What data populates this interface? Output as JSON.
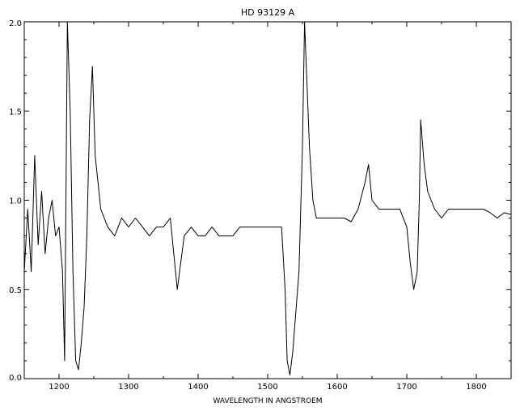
{
  "chart_data": {
    "type": "line",
    "title": "HD 93129 A",
    "xlabel": "WAVELENGTH IN ANGSTROEM",
    "ylabel": "",
    "xlim": [
      1150,
      1850
    ],
    "ylim": [
      0.0,
      2.0
    ],
    "x_ticks": [
      1200,
      1300,
      1400,
      1500,
      1600,
      1700,
      1800
    ],
    "x_tick_labels": [
      "1200",
      "1300",
      "1400",
      "1500",
      "1600",
      "1700",
      "1800"
    ],
    "y_ticks": [
      0.0,
      0.5,
      1.0,
      1.5,
      2.0
    ],
    "y_tick_labels": [
      "0.0",
      "0.5",
      "1.0",
      "1.5",
      "2.0"
    ],
    "grid": false,
    "line_color": "#000000",
    "series": [
      {
        "x": [
          1150,
          1155,
          1160,
          1165,
          1170,
          1175,
          1180,
          1185,
          1190,
          1195,
          1200,
          1205,
          1208,
          1212,
          1216,
          1220,
          1224,
          1228,
          1232,
          1236,
          1240,
          1244,
          1248,
          1252,
          1256,
          1260,
          1270,
          1280,
          1290,
          1300,
          1310,
          1320,
          1330,
          1340,
          1350,
          1360,
          1365,
          1370,
          1375,
          1380,
          1390,
          1400,
          1410,
          1420,
          1430,
          1440,
          1450,
          1460,
          1470,
          1480,
          1490,
          1500,
          1510,
          1520,
          1525,
          1528,
          1532,
          1536,
          1540,
          1545,
          1550,
          1553,
          1556,
          1560,
          1565,
          1570,
          1580,
          1590,
          1600,
          1610,
          1620,
          1630,
          1640,
          1645,
          1650,
          1660,
          1670,
          1680,
          1690,
          1700,
          1705,
          1710,
          1715,
          1718,
          1720,
          1725,
          1730,
          1740,
          1750,
          1760,
          1770,
          1780,
          1790,
          1800,
          1810,
          1820,
          1830,
          1840,
          1850
        ],
        "y": [
          0.6,
          0.95,
          0.6,
          1.25,
          0.75,
          1.05,
          0.7,
          0.9,
          1.0,
          0.8,
          0.85,
          0.6,
          0.1,
          2.0,
          1.5,
          0.6,
          0.1,
          0.05,
          0.2,
          0.4,
          0.8,
          1.45,
          1.75,
          1.25,
          1.1,
          0.95,
          0.85,
          0.8,
          0.9,
          0.85,
          0.9,
          0.85,
          0.8,
          0.85,
          0.85,
          0.9,
          0.7,
          0.5,
          0.65,
          0.8,
          0.85,
          0.8,
          0.8,
          0.85,
          0.8,
          0.8,
          0.8,
          0.85,
          0.85,
          0.85,
          0.85,
          0.85,
          0.85,
          0.85,
          0.5,
          0.1,
          0.02,
          0.15,
          0.35,
          0.6,
          1.3,
          2.0,
          1.7,
          1.3,
          1.0,
          0.9,
          0.9,
          0.9,
          0.9,
          0.9,
          0.88,
          0.95,
          1.1,
          1.2,
          1.0,
          0.95,
          0.95,
          0.95,
          0.95,
          0.85,
          0.65,
          0.5,
          0.6,
          1.0,
          1.45,
          1.2,
          1.05,
          0.95,
          0.9,
          0.95,
          0.95,
          0.95,
          0.95,
          0.95,
          0.95,
          0.93,
          0.9,
          0.93,
          0.92
        ]
      }
    ]
  }
}
